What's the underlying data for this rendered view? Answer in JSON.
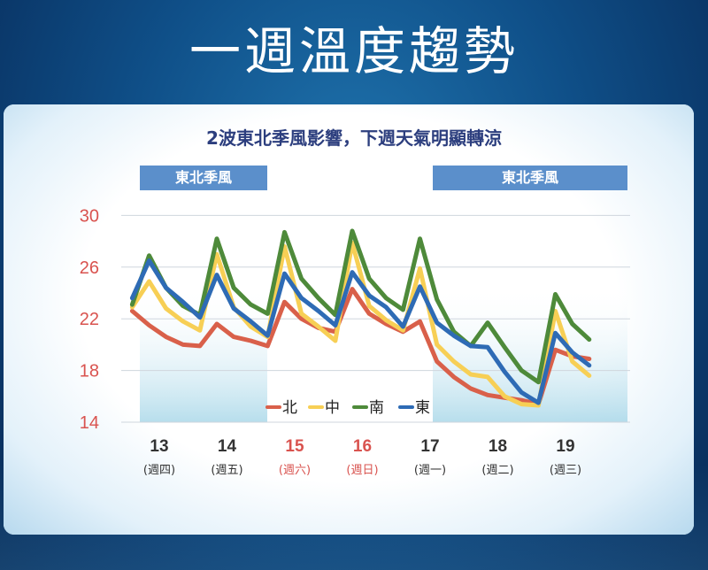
{
  "title": "一週溫度趨勢",
  "subtitle": "2波東北季風影響，下週天氣明顯轉涼",
  "monsoon_labels": [
    "東北季風",
    "東北季風"
  ],
  "colors": {
    "north": "#d9604a",
    "central": "#f7cf55",
    "south": "#4e8a3a",
    "east": "#2e6bb5",
    "weekend": "#d9534f",
    "axis": "#333333"
  },
  "chart_data": {
    "type": "line",
    "title": "",
    "xlabel": "",
    "ylabel": "",
    "ylim": [
      14,
      30
    ],
    "yticks": [
      30,
      26,
      22,
      18,
      14
    ],
    "grid": true,
    "legend_position": "bottom-right",
    "x_ticks": [
      {
        "label": "13",
        "sub": "(週四)",
        "weekend": false
      },
      {
        "label": "14",
        "sub": "(週五)",
        "weekend": false
      },
      {
        "label": "15",
        "sub": "(週六)",
        "weekend": true
      },
      {
        "label": "16",
        "sub": "(週日)",
        "weekend": true
      },
      {
        "label": "17",
        "sub": "(週一)",
        "weekend": false
      },
      {
        "label": "18",
        "sub": "(週二)",
        "weekend": false
      },
      {
        "label": "19",
        "sub": "(週三)",
        "weekend": false
      }
    ],
    "x": [
      12.6,
      12.85,
      13.1,
      13.35,
      13.6,
      13.85,
      14.1,
      14.35,
      14.6,
      14.85,
      15.1,
      15.35,
      15.6,
      15.85,
      16.1,
      16.35,
      16.6,
      16.85,
      17.1,
      17.35,
      17.6,
      17.85,
      18.1,
      18.35,
      18.6,
      18.85,
      19.1,
      19.35
    ],
    "series": [
      {
        "name": "北",
        "key": "north",
        "values": [
          22.6,
          21.5,
          20.6,
          20.0,
          19.9,
          21.6,
          20.6,
          20.3,
          19.9,
          23.3,
          22.0,
          21.3,
          21.0,
          24.3,
          22.4,
          21.6,
          21.0,
          21.8,
          18.7,
          17.5,
          16.6,
          16.1,
          15.9,
          15.7,
          15.4,
          19.6,
          19.1,
          18.9
        ]
      },
      {
        "name": "中",
        "key": "central",
        "values": [
          22.9,
          24.9,
          22.8,
          21.8,
          21.1,
          27.0,
          22.9,
          21.4,
          20.6,
          27.6,
          22.4,
          21.4,
          20.3,
          27.9,
          23.0,
          21.9,
          21.1,
          25.9,
          20.0,
          18.7,
          17.7,
          17.5,
          16.0,
          15.4,
          15.3,
          22.6,
          18.7,
          17.6
        ]
      },
      {
        "name": "南",
        "key": "south",
        "values": [
          23.1,
          26.9,
          24.4,
          23.0,
          22.3,
          28.2,
          24.4,
          23.1,
          22.4,
          28.7,
          25.1,
          23.6,
          22.3,
          28.8,
          25.1,
          23.6,
          22.7,
          28.2,
          23.5,
          21.0,
          19.9,
          21.7,
          19.8,
          18.0,
          17.1,
          23.9,
          21.6,
          20.4
        ]
      },
      {
        "name": "東",
        "key": "east",
        "values": [
          23.6,
          26.5,
          24.4,
          23.3,
          22.1,
          25.4,
          22.8,
          21.8,
          20.7,
          25.5,
          23.6,
          22.6,
          21.5,
          25.6,
          23.8,
          22.9,
          21.4,
          24.5,
          21.7,
          20.7,
          19.9,
          19.8,
          17.9,
          16.3,
          15.5,
          20.9,
          19.4,
          18.4
        ]
      }
    ]
  }
}
